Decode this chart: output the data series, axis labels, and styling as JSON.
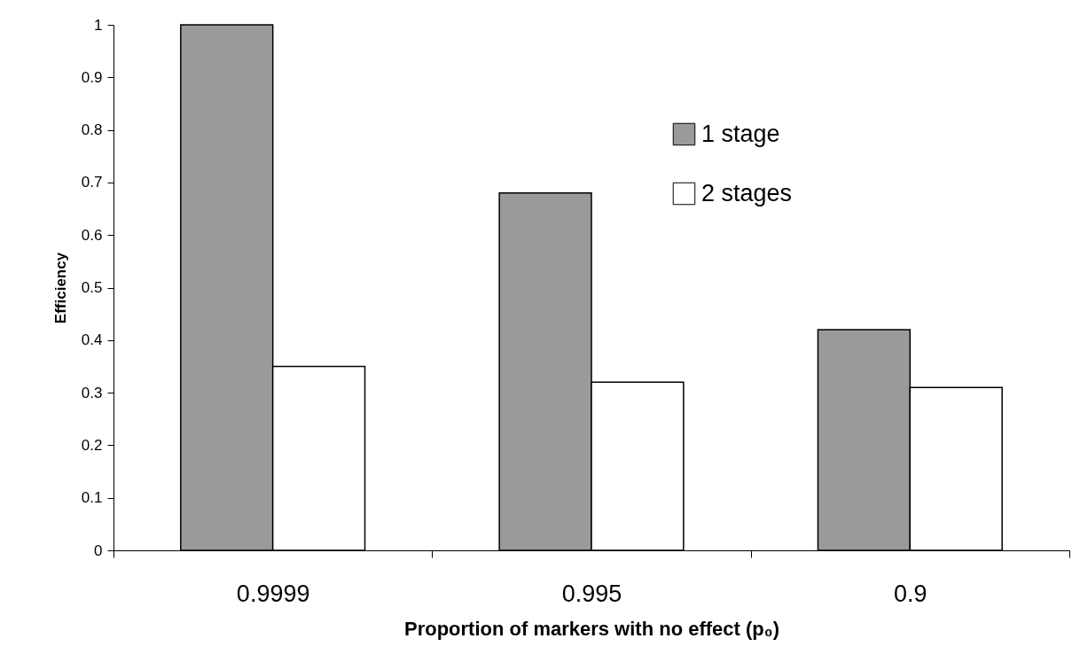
{
  "chart_data": {
    "type": "bar",
    "xlabel": "Proportion of markers with no effect (p₀)",
    "ylabel": "Efficiency",
    "categories": [
      "0.9999",
      "0.995",
      "0.9"
    ],
    "series": [
      {
        "name": "1 stage",
        "color": "#9a9a9a",
        "values": [
          1.0,
          0.68,
          0.42
        ]
      },
      {
        "name": "2 stages",
        "color": "#ffffff",
        "values": [
          0.35,
          0.32,
          0.31
        ]
      }
    ],
    "ylim": [
      0,
      1
    ],
    "yticks": [
      0,
      0.1,
      0.2,
      0.3,
      0.4,
      0.5,
      0.6,
      0.7,
      0.8,
      0.9,
      1
    ],
    "legend": "top right",
    "grid": false
  }
}
